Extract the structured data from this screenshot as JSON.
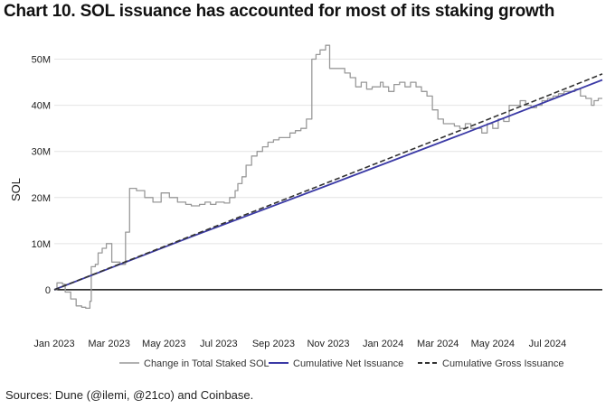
{
  "title": "Chart 10. SOL issuance has accounted for most of its staking growth",
  "source": "Sources: Dune (@ilemi, @21co) and Coinbase.",
  "colors": {
    "staked": "#999999",
    "net": "#3b3aa6",
    "gross": "#333333",
    "zero": "#111111",
    "grid": "#e4e4e4"
  },
  "chart_data": {
    "type": "line",
    "title": "Chart 10. SOL issuance has accounted for most of its staking growth",
    "xlabel": "",
    "ylabel": "SOL",
    "xlim": [
      0,
      20.0
    ],
    "ylim": [
      -10,
      55
    ],
    "x_ticks": [
      {
        "x": 0,
        "label": "Jan 2023"
      },
      {
        "x": 2,
        "label": "Mar 2023"
      },
      {
        "x": 4,
        "label": "May 2023"
      },
      {
        "x": 6,
        "label": "Jul 2023"
      },
      {
        "x": 8,
        "label": "Sep 2023"
      },
      {
        "x": 10,
        "label": "Nov 2023"
      },
      {
        "x": 12,
        "label": "Jan 2024"
      },
      {
        "x": 14,
        "label": "Mar 2024"
      },
      {
        "x": 16,
        "label": "May 2024"
      },
      {
        "x": 18,
        "label": "Jul 2024"
      }
    ],
    "y_ticks": [
      {
        "y": 0,
        "label": "0"
      },
      {
        "y": 10,
        "label": "10M"
      },
      {
        "y": 20,
        "label": "20M"
      },
      {
        "y": 30,
        "label": "30M"
      },
      {
        "y": 40,
        "label": "40M"
      },
      {
        "y": 50,
        "label": "50M"
      }
    ],
    "series": [
      {
        "name": "Change in Total Staked SOL",
        "style": "step",
        "points": [
          [
            0,
            0
          ],
          [
            0.1,
            1.5
          ],
          [
            0.3,
            1.2
          ],
          [
            0.4,
            -0.5
          ],
          [
            0.6,
            -2
          ],
          [
            0.8,
            -3.5
          ],
          [
            1.0,
            -3.8
          ],
          [
            1.15,
            -4
          ],
          [
            1.3,
            -2.5
          ],
          [
            1.35,
            5
          ],
          [
            1.5,
            5.5
          ],
          [
            1.6,
            8
          ],
          [
            1.75,
            9
          ],
          [
            1.9,
            10
          ],
          [
            2.1,
            6
          ],
          [
            2.3,
            6
          ],
          [
            2.4,
            5.5
          ],
          [
            2.6,
            12.5
          ],
          [
            2.75,
            22
          ],
          [
            3.0,
            21.5
          ],
          [
            3.3,
            20
          ],
          [
            3.6,
            19
          ],
          [
            3.9,
            21
          ],
          [
            4.2,
            20
          ],
          [
            4.5,
            19
          ],
          [
            4.8,
            18.5
          ],
          [
            5.0,
            18.2
          ],
          [
            5.3,
            18.5
          ],
          [
            5.5,
            19
          ],
          [
            5.7,
            18.5
          ],
          [
            5.9,
            19
          ],
          [
            6.2,
            18.8
          ],
          [
            6.4,
            20
          ],
          [
            6.6,
            21.5
          ],
          [
            6.7,
            23
          ],
          [
            6.85,
            24.5
          ],
          [
            7.0,
            27
          ],
          [
            7.2,
            29
          ],
          [
            7.4,
            30
          ],
          [
            7.6,
            31
          ],
          [
            7.8,
            32
          ],
          [
            8.0,
            32.5
          ],
          [
            8.2,
            33
          ],
          [
            8.4,
            33
          ],
          [
            8.6,
            34
          ],
          [
            8.8,
            34.5
          ],
          [
            9.0,
            35
          ],
          [
            9.2,
            37
          ],
          [
            9.4,
            50
          ],
          [
            9.55,
            51
          ],
          [
            9.7,
            52
          ],
          [
            9.9,
            53
          ],
          [
            10.05,
            48
          ],
          [
            10.3,
            48
          ],
          [
            10.6,
            47
          ],
          [
            10.8,
            46
          ],
          [
            11.0,
            44
          ],
          [
            11.2,
            45
          ],
          [
            11.4,
            43.5
          ],
          [
            11.6,
            44
          ],
          [
            11.9,
            45
          ],
          [
            12.0,
            44
          ],
          [
            12.2,
            43
          ],
          [
            12.4,
            44.5
          ],
          [
            12.6,
            45
          ],
          [
            12.8,
            44
          ],
          [
            13.0,
            45
          ],
          [
            13.2,
            44
          ],
          [
            13.4,
            43
          ],
          [
            13.6,
            42
          ],
          [
            13.8,
            39
          ],
          [
            14.0,
            37
          ],
          [
            14.2,
            36
          ],
          [
            14.4,
            36
          ],
          [
            14.6,
            35.5
          ],
          [
            14.8,
            35
          ],
          [
            15.0,
            36
          ],
          [
            15.2,
            35
          ],
          [
            15.4,
            35
          ],
          [
            15.6,
            34
          ],
          [
            15.8,
            36
          ],
          [
            16.0,
            35
          ],
          [
            16.2,
            37
          ],
          [
            16.4,
            36.5
          ],
          [
            16.6,
            40
          ],
          [
            16.8,
            40
          ],
          [
            17.0,
            41
          ],
          [
            17.2,
            40
          ],
          [
            17.4,
            39.5
          ],
          [
            17.6,
            40
          ],
          [
            17.8,
            41
          ],
          [
            18.0,
            41.5
          ],
          [
            18.2,
            42
          ],
          [
            18.4,
            42.5
          ],
          [
            18.6,
            43
          ],
          [
            18.8,
            43
          ],
          [
            19.0,
            43.5
          ],
          [
            19.2,
            42
          ],
          [
            19.4,
            41.5
          ],
          [
            19.6,
            40
          ],
          [
            19.7,
            41
          ],
          [
            19.85,
            41.5
          ],
          [
            20.0,
            41.5
          ]
        ]
      },
      {
        "name": "Cumulative Net Issuance",
        "style": "line",
        "points": [
          [
            0,
            0
          ],
          [
            5,
            11.5
          ],
          [
            10,
            22.7
          ],
          [
            15,
            34
          ],
          [
            20,
            45.5
          ]
        ]
      },
      {
        "name": "Cumulative Gross Issuance",
        "style": "dashed",
        "points": [
          [
            0,
            0
          ],
          [
            5,
            11.7
          ],
          [
            10,
            23.3
          ],
          [
            15,
            35
          ],
          [
            20,
            46.8
          ]
        ]
      }
    ],
    "legend": {
      "position": "bottom",
      "items": [
        {
          "label": "Change in Total Staked SOL",
          "style": "step"
        },
        {
          "label": "Cumulative Net Issuance",
          "style": "line"
        },
        {
          "label": "Cumulative Gross Issuance",
          "style": "dashed"
        }
      ]
    }
  }
}
